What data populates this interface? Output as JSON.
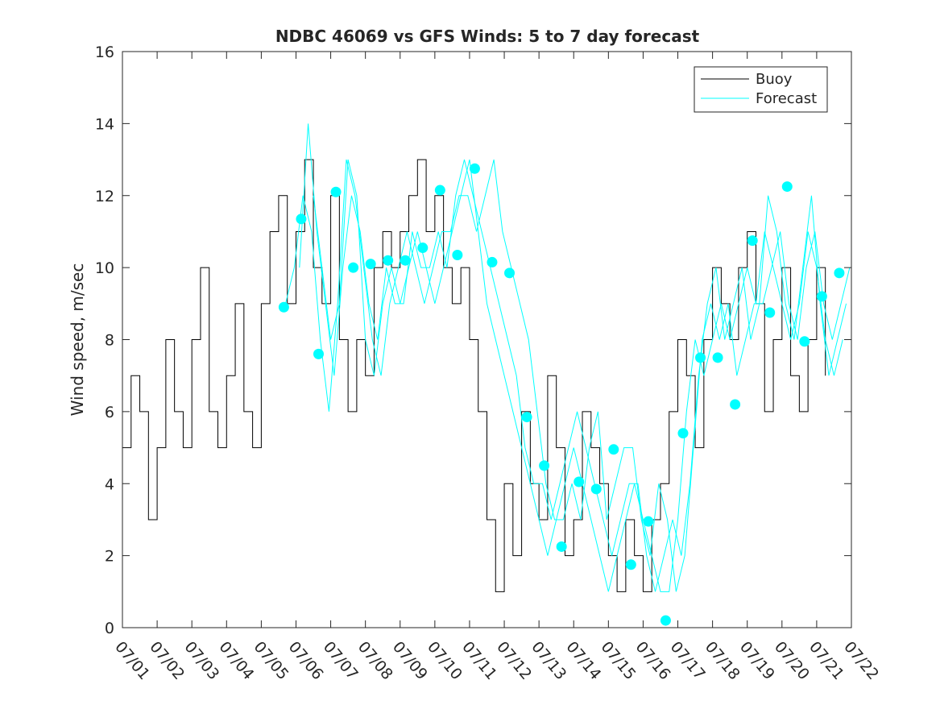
{
  "chart_data": {
    "type": "line",
    "title": "NDBC 46069 vs GFS Winds: 5 to 7 day forecast",
    "xlabel": "",
    "ylabel": "Wind speed, m/sec",
    "ylim": [
      0,
      16
    ],
    "yticks": [
      0,
      2,
      4,
      6,
      8,
      10,
      12,
      14,
      16
    ],
    "xlim": [
      0,
      21
    ],
    "xticks": [
      "07/01",
      "07/02",
      "07/03",
      "07/04",
      "07/05",
      "07/06",
      "07/07",
      "07/08",
      "07/09",
      "07/10",
      "07/11",
      "07/12",
      "07/13",
      "07/14",
      "07/15",
      "07/16",
      "07/17",
      "07/18",
      "07/19",
      "07/20",
      "07/21",
      "07/22"
    ],
    "grid": false,
    "legend": {
      "position": "top-right",
      "entries": [
        "Buoy",
        "Forecast"
      ]
    },
    "colors": {
      "buoy": "#000000",
      "forecast": "#00ffff"
    },
    "series": [
      {
        "name": "Buoy",
        "x": [
          0.0,
          0.25,
          0.5,
          0.75,
          1.0,
          1.25,
          1.5,
          1.75,
          2.0,
          2.25,
          2.5,
          2.75,
          3.0,
          3.25,
          3.5,
          3.75,
          4.0,
          4.25,
          4.5,
          4.75,
          5.0,
          5.25,
          5.5,
          5.75,
          6.0,
          6.25,
          6.5,
          6.75,
          7.0,
          7.25,
          7.5,
          7.75,
          8.0,
          8.25,
          8.5,
          8.75,
          9.0,
          9.25,
          9.5,
          9.75,
          10.0,
          10.25,
          10.5,
          10.75,
          11.0,
          11.25,
          11.5,
          11.75,
          12.0,
          12.25,
          12.5,
          12.75,
          13.0,
          13.25,
          13.5,
          13.75,
          14.0,
          14.25,
          14.5,
          14.75,
          15.0,
          15.25,
          15.5,
          15.75,
          16.0,
          16.25,
          16.5,
          16.75,
          17.0,
          17.25,
          17.5,
          17.75,
          18.0,
          18.25,
          18.5,
          18.75,
          19.0,
          19.25,
          19.5,
          19.75,
          20.0,
          20.25
        ],
        "values": [
          5,
          7,
          6,
          3,
          5,
          8,
          6,
          5,
          8,
          10,
          6,
          5,
          7,
          9,
          6,
          5,
          9,
          11,
          12,
          9,
          11,
          13,
          10,
          9,
          12,
          8,
          6,
          8,
          7,
          10,
          11,
          10,
          11,
          12,
          13,
          11,
          12,
          10,
          9,
          10,
          8,
          6,
          3,
          1,
          4,
          2,
          6,
          4,
          3,
          7,
          5,
          2,
          3,
          6,
          5,
          4,
          2,
          1,
          3,
          2,
          1,
          3,
          4,
          6,
          8,
          7,
          5,
          8,
          10,
          9,
          8,
          10,
          11,
          9,
          6,
          8,
          10,
          7,
          6,
          8,
          10,
          7
        ]
      },
      {
        "name": "Forecast",
        "x": [
          4.7,
          4.95,
          5.2,
          5.45,
          5.7,
          5.95,
          6.2,
          6.45,
          6.7,
          6.95,
          7.2,
          7.45,
          7.7,
          7.95,
          8.2,
          8.45,
          8.7,
          8.95,
          9.2,
          9.45,
          9.7,
          9.95,
          10.2,
          10.45,
          10.7,
          10.95,
          11.2,
          11.45,
          11.7,
          11.95,
          12.2,
          12.45,
          12.7,
          12.95,
          13.2,
          13.45,
          13.7,
          13.95,
          14.2,
          14.45,
          14.7,
          14.95,
          15.2,
          15.45,
          15.7,
          15.95,
          16.2,
          16.45,
          16.7,
          16.95,
          17.2,
          17.45,
          17.7,
          17.95,
          18.2,
          18.45,
          18.7,
          18.95,
          19.2,
          19.45,
          19.7,
          19.95,
          20.2,
          20.45,
          20.7,
          20.95
        ],
        "values": [
          9,
          10,
          12,
          11,
          8,
          6,
          9,
          13,
          12,
          10,
          8,
          7,
          9,
          10,
          11,
          10,
          9,
          10,
          11,
          11,
          12,
          12,
          11,
          12,
          13,
          11,
          10,
          9,
          8,
          6,
          4,
          3,
          3,
          4,
          3,
          5,
          6,
          3,
          4,
          5,
          5,
          3,
          2,
          4,
          3,
          1,
          2,
          5,
          8,
          9,
          8,
          9,
          7,
          8,
          9,
          9,
          10,
          11,
          9,
          8,
          10,
          11,
          9,
          8,
          9,
          10
        ]
      },
      {
        "name": "Forecast",
        "x": [
          5.1,
          5.35,
          5.6,
          5.85,
          6.1,
          6.35,
          6.6,
          6.85,
          7.1,
          7.35,
          7.6,
          7.85,
          8.1,
          8.35,
          8.6,
          8.85,
          9.1,
          9.35,
          9.6,
          9.85,
          10.1,
          10.35,
          10.6,
          10.85,
          11.1,
          11.35,
          11.6,
          11.85,
          12.1,
          12.35,
          12.6,
          12.85,
          13.1,
          13.35,
          13.6,
          13.85,
          14.1,
          14.35,
          14.6,
          14.85,
          15.1,
          15.35,
          15.6,
          15.85,
          16.1,
          16.35,
          16.6,
          16.85,
          17.1,
          17.35,
          17.6,
          17.85,
          18.1,
          18.35,
          18.6,
          18.85,
          19.1,
          19.35,
          19.6,
          19.85,
          20.1,
          20.35,
          20.6,
          20.85
        ],
        "values": [
          10,
          14,
          11,
          9,
          7,
          10,
          12,
          11,
          9,
          8,
          10,
          9,
          9,
          11,
          10,
          10,
          11,
          10,
          12,
          13,
          12,
          11,
          10,
          9,
          8,
          7,
          5,
          4,
          4,
          3,
          4,
          5,
          6,
          5,
          4,
          3,
          2,
          3,
          4,
          4,
          2,
          1,
          2,
          3,
          2,
          4,
          7,
          9,
          10,
          8,
          9,
          10,
          8,
          9,
          12,
          11,
          9,
          8,
          10,
          12,
          9,
          7,
          8,
          9
        ]
      },
      {
        "name": "Forecast",
        "x": [
          5.5,
          5.75,
          6.0,
          6.25,
          6.5,
          6.75,
          7.0,
          7.25,
          7.5,
          7.75,
          8.0,
          8.25,
          8.5,
          8.75,
          9.0,
          9.25,
          9.5,
          9.75,
          10.0,
          10.25,
          10.5,
          10.75,
          11.0,
          11.25,
          11.5,
          11.75,
          12.0,
          12.25,
          12.5,
          12.75,
          13.0,
          13.25,
          13.5,
          13.75,
          14.0,
          14.25,
          14.5,
          14.75,
          15.0,
          15.25,
          15.5,
          15.75,
          16.0,
          16.25,
          16.5,
          16.75,
          17.0,
          17.25,
          17.5,
          17.75,
          18.0,
          18.25,
          18.5,
          18.75,
          19.0,
          19.25,
          19.5,
          19.75,
          20.0,
          20.25,
          20.5,
          20.75
        ],
        "values": [
          12,
          10,
          8,
          9,
          13,
          12,
          8,
          7,
          9,
          10,
          9,
          10,
          11,
          10,
          9,
          10,
          11,
          12,
          13,
          11,
          9,
          8,
          7,
          6,
          5,
          4,
          3,
          2,
          3,
          4,
          5,
          4,
          3,
          2,
          1,
          2,
          3,
          4,
          3,
          2,
          1,
          1,
          3,
          6,
          8,
          7,
          8,
          9,
          8,
          9,
          10,
          9,
          11,
          10,
          9,
          8,
          9,
          11,
          10,
          8,
          7,
          8
        ]
      }
    ],
    "markers": {
      "name": "Forecast",
      "x": [
        4.65,
        5.15,
        5.65,
        6.15,
        6.65,
        7.15,
        7.65,
        8.15,
        8.65,
        9.15,
        9.65,
        10.15,
        10.65,
        11.15,
        11.65,
        12.15,
        12.65,
        13.15,
        13.65,
        14.15,
        14.65,
        15.15,
        15.65,
        16.15,
        16.65,
        17.15,
        17.65,
        18.15,
        18.65,
        19.15,
        19.65,
        20.15,
        20.65
      ],
      "values": [
        8.9,
        11.35,
        7.6,
        12.1,
        10.0,
        10.1,
        10.2,
        10.2,
        10.55,
        12.15,
        10.35,
        12.75,
        10.15,
        9.85,
        5.85,
        4.5,
        2.25,
        4.05,
        3.85,
        4.95,
        1.75,
        2.95,
        0.2,
        5.4,
        7.5,
        7.5,
        6.2,
        10.75,
        8.75,
        12.25,
        7.95,
        9.2,
        9.85
      ]
    }
  }
}
